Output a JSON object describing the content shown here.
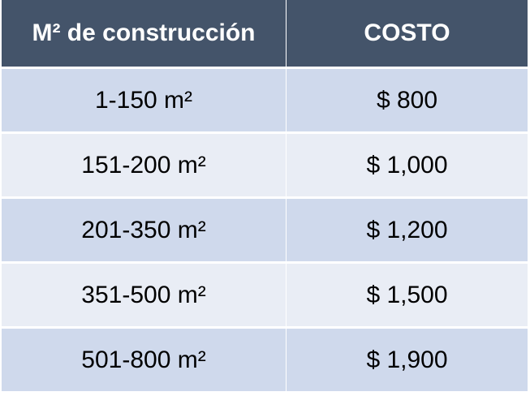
{
  "table": {
    "header": [
      "M² de construcción",
      "COSTO"
    ],
    "rows": [
      [
        "1-150 m²",
        "$ 800"
      ],
      [
        "151-200 m²",
        "$ 1,000"
      ],
      [
        "201-350 m²",
        "$ 1,200"
      ],
      [
        "351-500 m²",
        "$ 1,500"
      ],
      [
        "501-800 m²",
        "$ 1,900"
      ]
    ]
  }
}
